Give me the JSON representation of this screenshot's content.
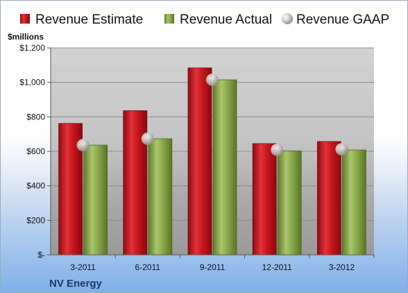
{
  "chart_data": {
    "type": "bar",
    "unit_label": "$millions",
    "company": "NV Energy",
    "categories": [
      "3-2011",
      "6-2011",
      "9-2011",
      "12-2011",
      "3-2012"
    ],
    "series": [
      {
        "name": "Revenue Estimate",
        "kind": "bar",
        "color": "#c8161d",
        "values": [
          762,
          836,
          1084,
          645,
          657
        ]
      },
      {
        "name": "Revenue Actual",
        "kind": "bar",
        "color": "#8aaa4a",
        "values": [
          636,
          673,
          1015,
          603,
          608
        ]
      },
      {
        "name": "Revenue GAAP",
        "kind": "marker",
        "color": "#b8b8b8",
        "values": [
          636,
          673,
          1015,
          609,
          612
        ]
      }
    ],
    "ylim": [
      0,
      1200
    ],
    "yticks": [
      0,
      200,
      400,
      600,
      800,
      1000,
      1200
    ],
    "ytick_labels": [
      "$-",
      "$200",
      "$400",
      "$600",
      "$800",
      "$1,000",
      "$1,200"
    ],
    "grid": true,
    "legend_position": "top"
  }
}
